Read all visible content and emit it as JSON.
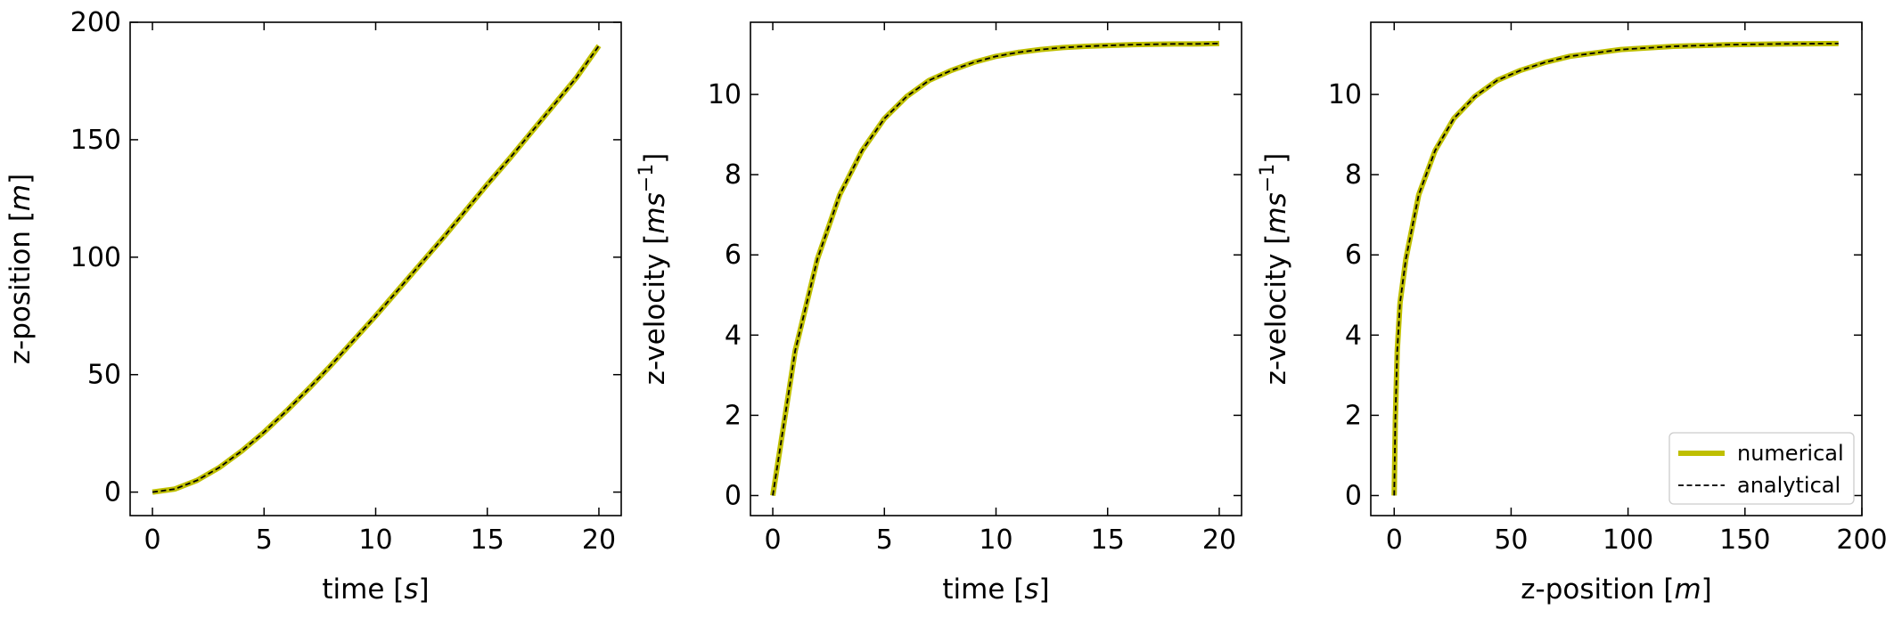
{
  "colors": {
    "numerical": "#bfbf00",
    "analytical": "#000000"
  },
  "chart_data": [
    {
      "type": "line",
      "xlabel": {
        "plain": "time [",
        "italic": "s",
        "close": "]"
      },
      "ylabel": {
        "plain": "z-position [",
        "italic": "m",
        "close": "]"
      },
      "xlim": [
        -1,
        21
      ],
      "ylim": [
        -10,
        200
      ],
      "xticks": [
        0,
        5,
        10,
        15,
        20
      ],
      "xtick_labels": [
        "0",
        "5",
        "10",
        "15",
        "20"
      ],
      "yticks": [
        0,
        50,
        100,
        150,
        200
      ],
      "ytick_labels": [
        "0",
        "50",
        "100",
        "150",
        "200"
      ],
      "x": [
        0,
        1,
        2,
        3,
        4,
        5,
        6,
        7,
        8,
        9,
        10,
        11,
        12,
        13,
        14,
        15,
        16,
        17,
        18,
        19,
        20
      ],
      "series": [
        {
          "name": "numerical",
          "values": [
            0,
            1.3,
            5,
            10.5,
            17.5,
            25.5,
            34.5,
            44,
            54,
            64.5,
            75,
            86,
            97,
            108,
            119.5,
            131,
            142,
            153.5,
            165,
            176.5,
            190
          ]
        },
        {
          "name": "analytical",
          "values": [
            0,
            1.3,
            5,
            10.5,
            17.5,
            25.5,
            34.5,
            44,
            54,
            64.5,
            75,
            86,
            97,
            108,
            119.5,
            131,
            142,
            153.5,
            165,
            176.5,
            190
          ]
        }
      ],
      "legend": null
    },
    {
      "type": "line",
      "xlabel": {
        "plain": "time [",
        "italic": "s",
        "close": "]"
      },
      "ylabel": {
        "plain": "z-velocity [",
        "italic": "ms",
        "sup": "−1",
        "close": "]"
      },
      "xlim": [
        -1,
        21
      ],
      "ylim": [
        -0.5,
        11.8
      ],
      "xticks": [
        0,
        5,
        10,
        15,
        20
      ],
      "xtick_labels": [
        "0",
        "5",
        "10",
        "15",
        "20"
      ],
      "yticks": [
        0,
        2,
        4,
        6,
        8,
        10
      ],
      "ytick_labels": [
        "0",
        "2",
        "4",
        "6",
        "8",
        "10"
      ],
      "x": [
        0,
        1,
        2,
        3,
        4,
        5,
        6,
        7,
        8,
        9,
        10,
        11,
        12,
        13,
        14,
        15,
        16,
        17,
        18,
        19,
        20
      ],
      "series": [
        {
          "name": "numerical",
          "values": [
            0,
            3.6,
            5.9,
            7.5,
            8.6,
            9.4,
            9.95,
            10.35,
            10.6,
            10.8,
            10.95,
            11.05,
            11.12,
            11.17,
            11.2,
            11.22,
            11.24,
            11.25,
            11.26,
            11.26,
            11.27
          ]
        },
        {
          "name": "analytical",
          "values": [
            0,
            3.6,
            5.9,
            7.5,
            8.6,
            9.4,
            9.95,
            10.35,
            10.6,
            10.8,
            10.95,
            11.05,
            11.12,
            11.17,
            11.2,
            11.22,
            11.24,
            11.25,
            11.26,
            11.26,
            11.27
          ]
        }
      ],
      "legend": null
    },
    {
      "type": "line",
      "xlabel": {
        "plain": "z-position [",
        "italic": "m",
        "close": "]"
      },
      "ylabel": {
        "plain": "z-velocity [",
        "italic": "ms",
        "sup": "−1",
        "close": "]"
      },
      "xlim": [
        -10,
        200
      ],
      "ylim": [
        -0.5,
        11.8
      ],
      "xticks": [
        0,
        50,
        100,
        150,
        200
      ],
      "xtick_labels": [
        "0",
        "50",
        "100",
        "150",
        "200"
      ],
      "yticks": [
        0,
        2,
        4,
        6,
        8,
        10
      ],
      "ytick_labels": [
        "0",
        "2",
        "4",
        "6",
        "8",
        "10"
      ],
      "x": [
        0,
        0.5,
        1.3,
        2.5,
        5,
        10.5,
        17.5,
        25.5,
        34.5,
        44,
        54,
        64.5,
        75,
        97,
        119.5,
        142,
        165,
        190
      ],
      "series": [
        {
          "name": "numerical",
          "values": [
            0,
            1.9,
            3.6,
            4.8,
            5.9,
            7.5,
            8.6,
            9.4,
            9.95,
            10.35,
            10.6,
            10.8,
            10.95,
            11.12,
            11.2,
            11.24,
            11.26,
            11.27
          ]
        },
        {
          "name": "analytical",
          "values": [
            0,
            1.9,
            3.6,
            4.8,
            5.9,
            7.5,
            8.6,
            9.4,
            9.95,
            10.35,
            10.6,
            10.8,
            10.95,
            11.12,
            11.2,
            11.24,
            11.26,
            11.27
          ]
        }
      ],
      "legend": {
        "location": "lower-right",
        "entries": [
          "numerical",
          "analytical"
        ]
      }
    }
  ]
}
